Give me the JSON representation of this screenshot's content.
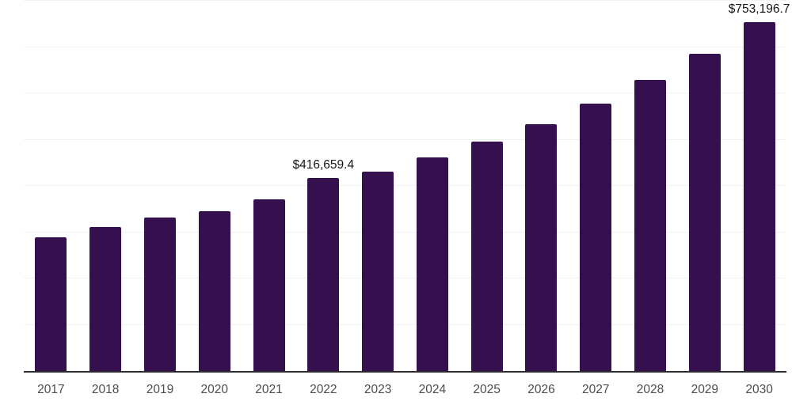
{
  "chart_data": {
    "type": "bar",
    "title": "",
    "xlabel": "",
    "ylabel": "",
    "categories": [
      "2017",
      "2018",
      "2019",
      "2020",
      "2021",
      "2022",
      "2023",
      "2024",
      "2025",
      "2026",
      "2027",
      "2028",
      "2029",
      "2030"
    ],
    "values": [
      289500,
      310600,
      331200,
      345400,
      371600,
      416659.4,
      430500,
      461100,
      495300,
      533600,
      577400,
      629700,
      686100,
      753196.7
    ],
    "labeled_values": [
      {
        "category": "2022",
        "index": 5,
        "label": "$416,659.4"
      },
      {
        "category": "2030",
        "index": 13,
        "label": "$753,196.7"
      }
    ],
    "ylim": [
      0,
      800000
    ],
    "gridline_step": 100000,
    "grid": "horizontal",
    "legend": "none",
    "y_tick_labels_shown": false
  },
  "colors": {
    "background": "#ffffff",
    "bar": "#35104F",
    "gridline": "#f1f1f1",
    "axis_line": "#2d2d2d",
    "tick_label": "#4d4d4d",
    "data_label": "#141414"
  }
}
